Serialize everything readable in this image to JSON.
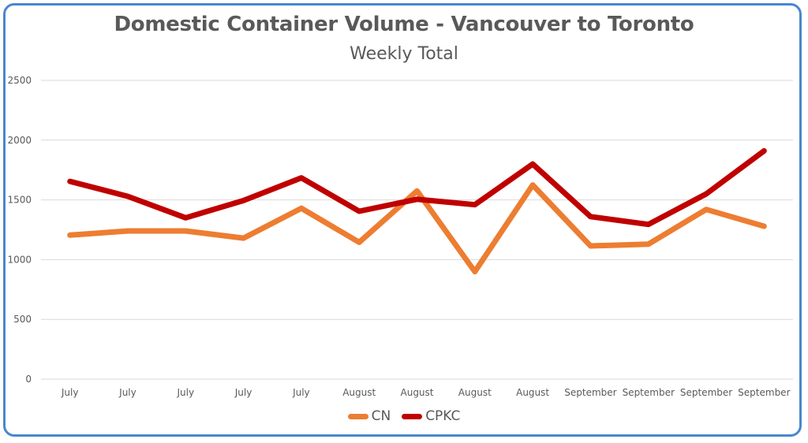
{
  "chart_data": {
    "type": "line",
    "title": "Domestic Container Volume - Vancouver to Toronto",
    "subtitle": "Weekly Total",
    "categories": [
      "July",
      "July",
      "July",
      "July",
      "July",
      "August",
      "August",
      "August",
      "August",
      "September",
      "September",
      "September",
      "September"
    ],
    "ylim": [
      0,
      2500
    ],
    "yticks": [
      0,
      500,
      1000,
      1500,
      2000,
      2500
    ],
    "grid": true,
    "legend_position": "bottom",
    "series": [
      {
        "name": "CN",
        "color": "#ed7d31",
        "values": [
          1205,
          1240,
          1240,
          1180,
          1430,
          1145,
          1575,
          900,
          1625,
          1115,
          1130,
          1420,
          1280
        ]
      },
      {
        "name": "CPKC",
        "color": "#c00000",
        "values": [
          1655,
          1530,
          1350,
          1495,
          1685,
          1405,
          1505,
          1460,
          1800,
          1360,
          1295,
          1550,
          1910
        ]
      }
    ]
  }
}
